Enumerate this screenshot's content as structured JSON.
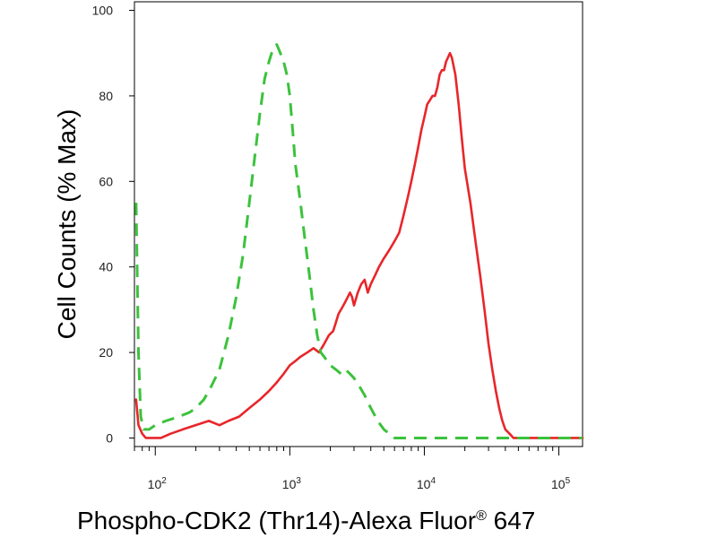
{
  "chart_data": {
    "type": "line",
    "xscale": "log",
    "xlabel_main": "Phospho-CDK2 (Thr14)-Alexa Fluor",
    "xlabel_sup": "®",
    "xlabel_tail": " 647",
    "ylabel": "Cell Counts (% Max)",
    "xlim": [
      70,
      150000
    ],
    "ylim": [
      -2,
      102
    ],
    "yticks": [
      0,
      20,
      40,
      60,
      80,
      100
    ],
    "xticks": [
      {
        "value": 100,
        "base": "10",
        "exp": "2"
      },
      {
        "value": 1000,
        "base": "10",
        "exp": "3"
      },
      {
        "value": 10000,
        "base": "10",
        "exp": "4"
      },
      {
        "value": 100000,
        "base": "10",
        "exp": "5"
      }
    ],
    "grid": false,
    "series": [
      {
        "color": "#e8262a",
        "style": "solid",
        "x": [
          72,
          75,
          80,
          85,
          95,
          110,
          130,
          160,
          200,
          250,
          300,
          350,
          420,
          500,
          600,
          700,
          800,
          900,
          1000,
          1100,
          1200,
          1350,
          1500,
          1650,
          1800,
          1950,
          2100,
          2200,
          2300,
          2400,
          2500,
          2600,
          2700,
          2800,
          2900,
          3000,
          3200,
          3400,
          3600,
          3800,
          4000,
          4300,
          4600,
          5000,
          5500,
          6000,
          6500,
          7000,
          7500,
          8000,
          8500,
          9000,
          9500,
          10000,
          10500,
          11000,
          11500,
          12000,
          12500,
          13000,
          13500,
          14000,
          14500,
          15000,
          15500,
          16000,
          17000,
          18000,
          19000,
          20000,
          22000,
          24000,
          26000,
          28000,
          30000,
          32000,
          34000,
          36000,
          38000,
          40000,
          43000,
          46000,
          50000,
          55000,
          60000,
          65000,
          70000,
          80000,
          100000,
          130000,
          150000
        ],
        "y": [
          9,
          3,
          1,
          0,
          0,
          0,
          1,
          2,
          3,
          4,
          3,
          4,
          5,
          7,
          9,
          11,
          13,
          15,
          17,
          18,
          19,
          20,
          21,
          20,
          22,
          24,
          25,
          27,
          29,
          30,
          31,
          32,
          33,
          34,
          33,
          31,
          34,
          36,
          37,
          34,
          36,
          38,
          40,
          42,
          44,
          46,
          48,
          52,
          56,
          60,
          64,
          68,
          72,
          75,
          78,
          79,
          80,
          80,
          82,
          85,
          86,
          86,
          88,
          89,
          90,
          89,
          85,
          78,
          70,
          63,
          55,
          46,
          38,
          30,
          22,
          16,
          11,
          7,
          4,
          2,
          1,
          0,
          0,
          0,
          0,
          0,
          0,
          0,
          0,
          0,
          0
        ]
      },
      {
        "color": "#3cc23c",
        "style": "dashed",
        "x": [
          72,
          75,
          78,
          82,
          90,
          100,
          120,
          150,
          180,
          200,
          230,
          260,
          300,
          350,
          400,
          450,
          500,
          550,
          600,
          650,
          700,
          750,
          800,
          850,
          900,
          950,
          1000,
          1050,
          1100,
          1200,
          1300,
          1400,
          1500,
          1600,
          1700,
          1800,
          2000,
          2200,
          2400,
          2600,
          2800,
          3000,
          3300,
          3600,
          4000,
          4500,
          5000,
          5500,
          6000,
          7000,
          8000,
          10000,
          20000,
          50000,
          100000,
          150000
        ],
        "y": [
          55,
          20,
          5,
          2,
          2,
          3,
          4,
          5,
          6,
          7,
          9,
          12,
          16,
          24,
          33,
          43,
          55,
          66,
          76,
          84,
          88,
          91,
          92,
          90,
          88,
          85,
          80,
          72,
          64,
          55,
          46,
          38,
          30,
          24,
          20,
          19,
          17,
          16,
          15,
          16,
          15,
          14,
          12,
          10,
          7,
          4,
          2,
          1,
          0,
          0,
          0,
          0,
          0,
          0,
          0,
          0
        ]
      }
    ]
  }
}
